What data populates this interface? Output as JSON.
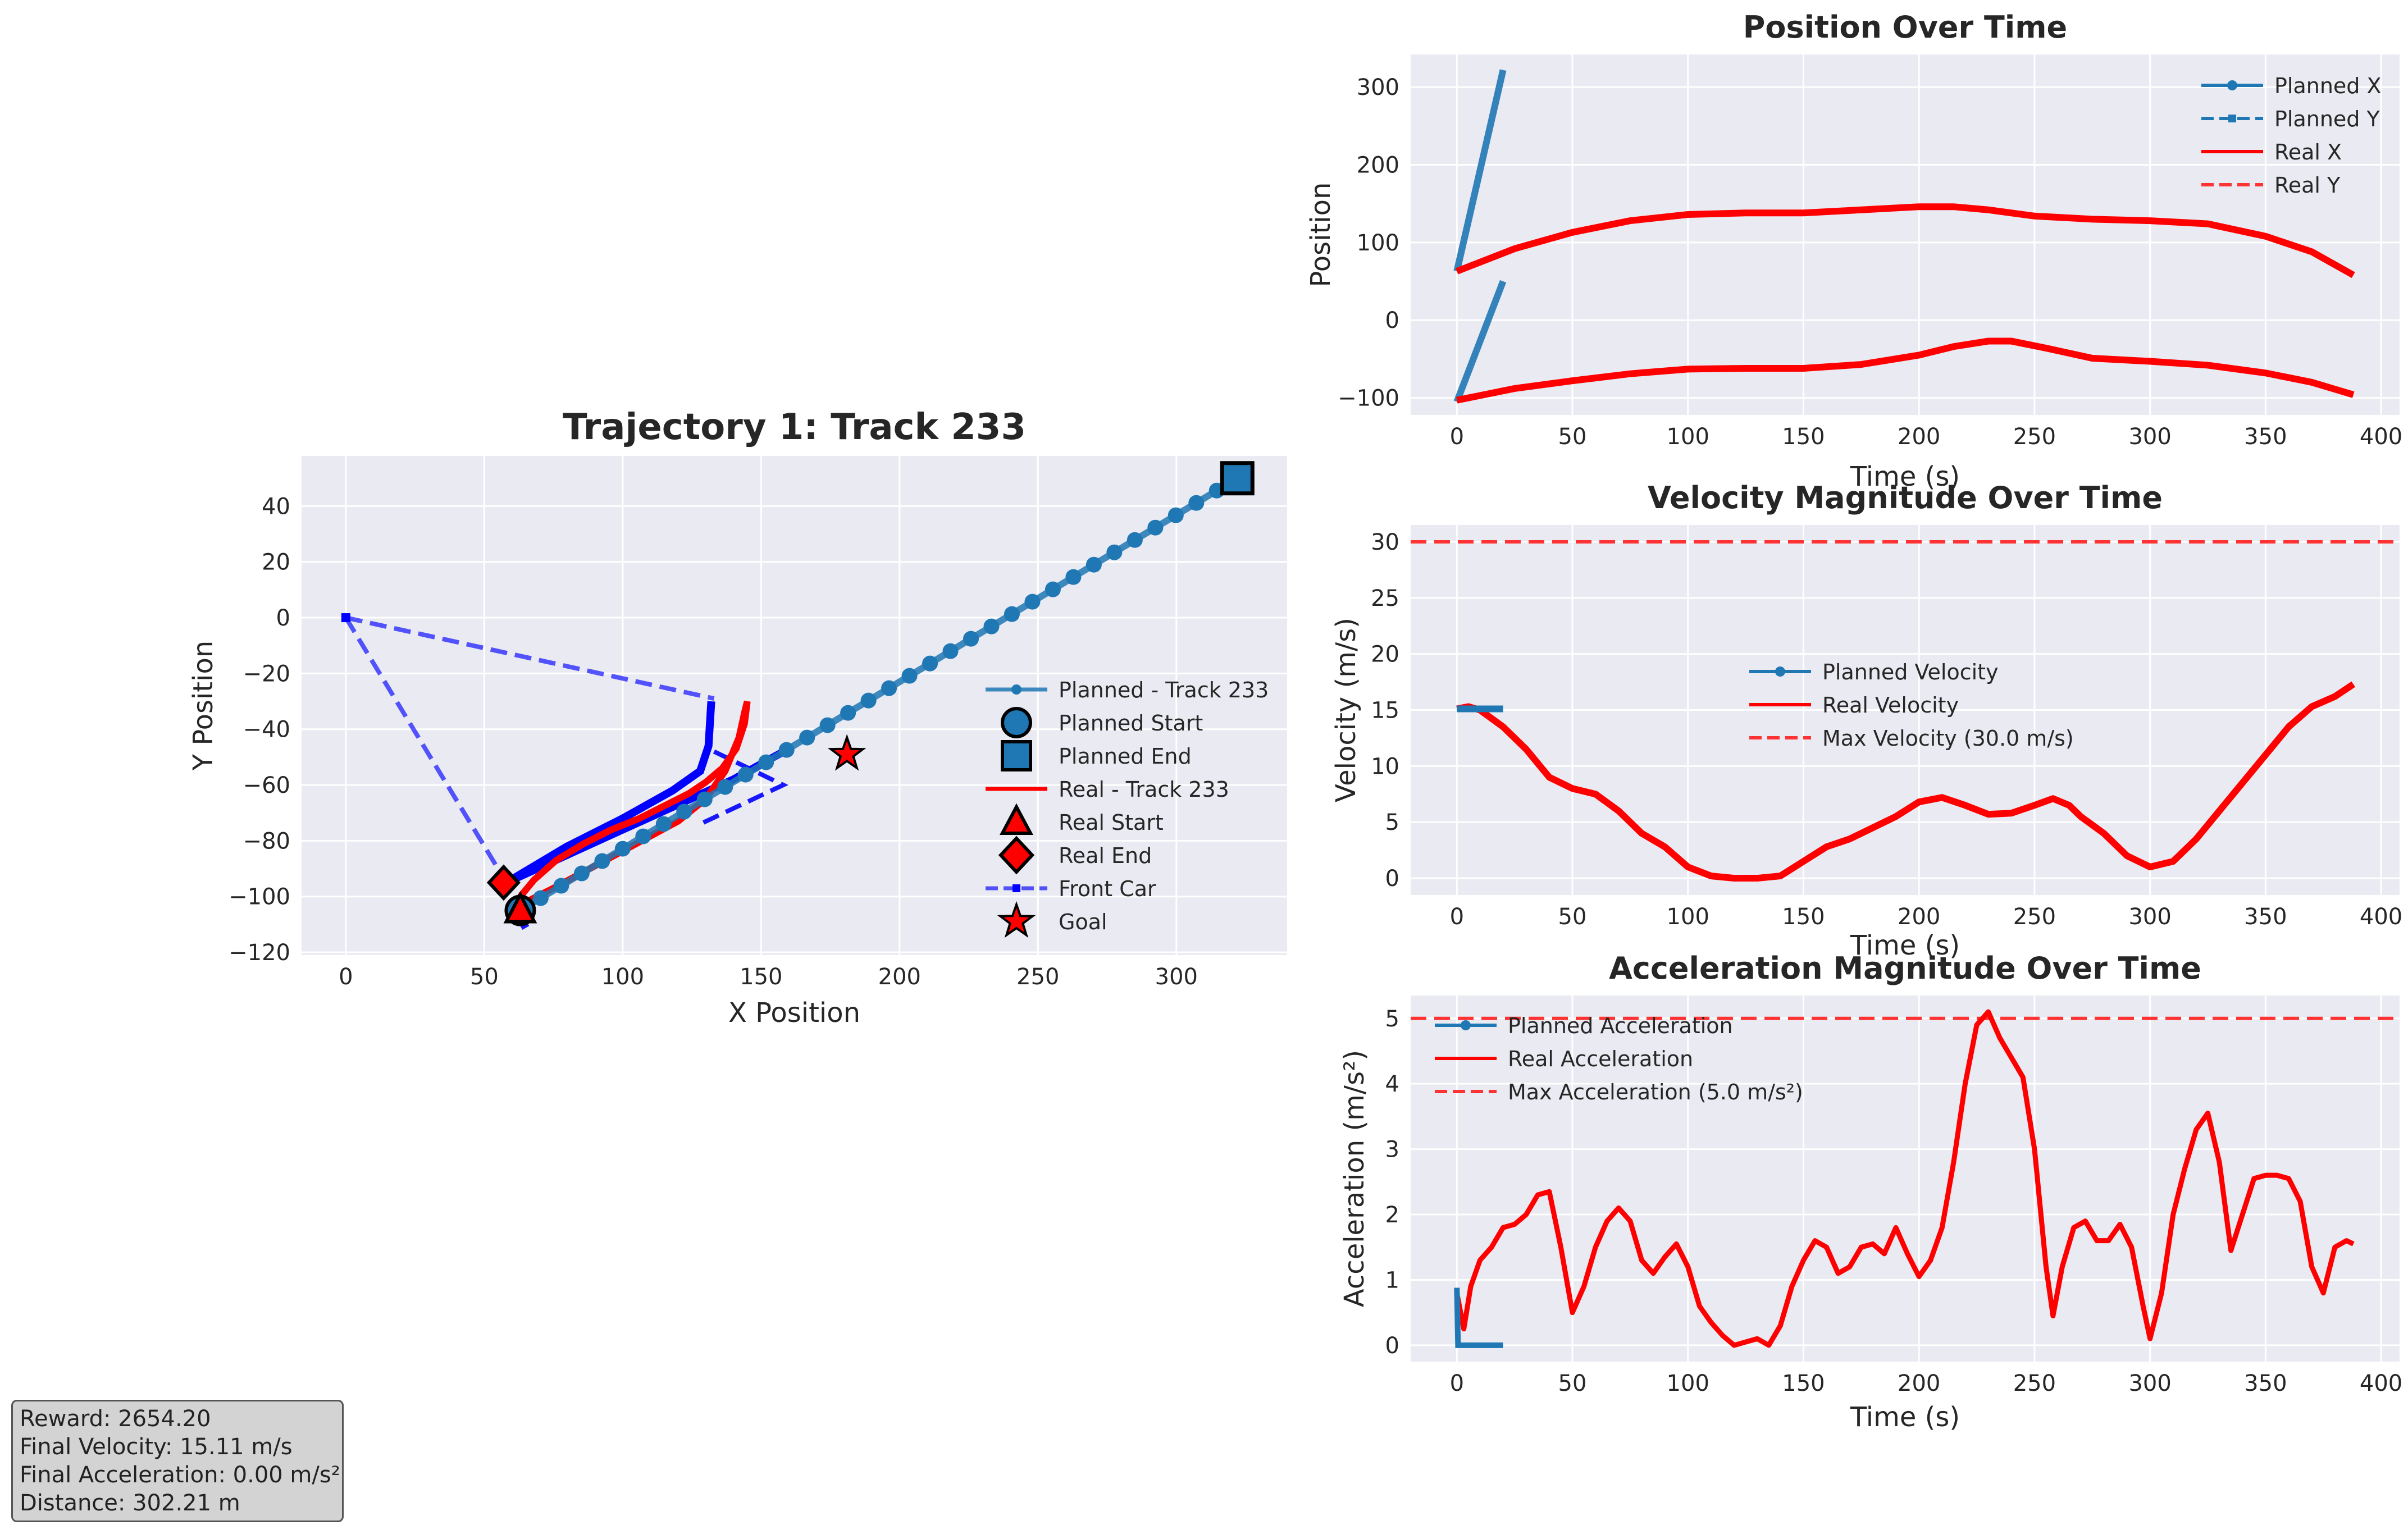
{
  "chart_data": [
    {
      "id": "traj",
      "type": "line",
      "title": "Trajectory 1: Track 233",
      "xlabel": "X Position",
      "ylabel": "Y Position",
      "xlim": [
        -16,
        340
      ],
      "ylim": [
        -121,
        58
      ],
      "xticks": [
        0,
        50,
        100,
        150,
        200,
        250,
        300
      ],
      "yticks": [
        40,
        20,
        0,
        -20,
        -40,
        -60,
        -80,
        -100,
        -120
      ],
      "grid": true,
      "legend_position": "lower right",
      "series": [
        {
          "name": "Planned - Track 233",
          "color": "#1f77b4",
          "x": [
            63,
            322
          ],
          "y": [
            -105,
            50
          ]
        },
        {
          "name": "Real - Track 233",
          "color": "#ff0000",
          "x": [
            63,
            75,
            90,
            105,
            120,
            130,
            137,
            142,
            144,
            145,
            144,
            141,
            136,
            130,
            124,
            116,
            106,
            96,
            86,
            76,
            68,
            63
          ],
          "y": [
            -103,
            -97,
            -89,
            -81,
            -73,
            -65,
            -55,
            -43,
            -34,
            -30,
            -38,
            -47,
            -54,
            -59,
            -63,
            -67,
            -72,
            -76,
            -81,
            -87,
            -94,
            -100
          ]
        },
        {
          "name": "Front Car",
          "color": "#0000ff",
          "segments": [
            {
              "x": [
                0,
                58
              ],
              "y": [
                0,
                -95
              ]
            },
            {
              "x": [
                0,
                133
              ],
              "y": [
                0,
                -29
              ]
            },
            {
              "x": [
                133,
                158,
                128
              ],
              "y": [
                -48,
                -60,
                -74
              ]
            },
            {
              "x": [
                62,
                66
              ],
              "y": [
                -106,
                -113
              ]
            }
          ]
        }
      ],
      "markers": {
        "planned_start": {
          "name": "Planned Start",
          "x": 63,
          "y": -105
        },
        "planned_end": {
          "name": "Planned End",
          "x": 322,
          "y": 50
        },
        "real_start": {
          "name": "Real Start",
          "x": 63,
          "y": -105
        },
        "real_end": {
          "name": "Real End",
          "x": 57,
          "y": -95
        },
        "goal": {
          "name": "Goal",
          "x": 181,
          "y": -49
        }
      },
      "legend": [
        "Planned - Track 233",
        "Planned Start",
        "Planned End",
        "Real - Track 233",
        "Real Start",
        "Real End",
        "Front Car",
        "Goal"
      ]
    },
    {
      "id": "pos",
      "type": "line",
      "title": "Position Over Time",
      "xlabel": "Time (s)",
      "ylabel": "Position",
      "xlim": [
        -20,
        408
      ],
      "ylim": [
        -122,
        342
      ],
      "xticks": [
        0,
        50,
        100,
        150,
        200,
        250,
        300,
        350,
        400
      ],
      "yticks": [
        300,
        200,
        100,
        0,
        -100
      ],
      "grid": true,
      "legend_position": "upper right",
      "series": [
        {
          "name": "Planned X",
          "color": "#1f77b4",
          "x": [
            0,
            20
          ],
          "y": [
            63,
            322
          ]
        },
        {
          "name": "Planned Y",
          "color": "#1f77b4",
          "dashed": true,
          "x": [
            0,
            20
          ],
          "y": [
            -105,
            50
          ]
        },
        {
          "name": "Real X",
          "color": "#ff0000",
          "x": [
            0,
            25,
            50,
            75,
            100,
            125,
            150,
            175,
            200,
            215,
            230,
            250,
            275,
            300,
            325,
            350,
            370,
            388
          ],
          "y": [
            63,
            92,
            113,
            128,
            136,
            138,
            138,
            142,
            146,
            146,
            142,
            134,
            130,
            128,
            124,
            108,
            88,
            58
          ]
        },
        {
          "name": "Real Y",
          "color": "#ff0000",
          "dashed": true,
          "x": [
            0,
            25,
            50,
            75,
            100,
            125,
            150,
            175,
            200,
            215,
            230,
            240,
            255,
            275,
            300,
            325,
            350,
            370,
            388
          ],
          "y": [
            -103,
            -88,
            -78,
            -69,
            -63,
            -62,
            -62,
            -57,
            -45,
            -34,
            -27,
            -27,
            -36,
            -49,
            -53,
            -58,
            -68,
            -80,
            -96
          ]
        }
      ],
      "legend": [
        "Planned X",
        "Planned Y",
        "Real X",
        "Real Y"
      ]
    },
    {
      "id": "vel",
      "type": "line",
      "title": "Velocity Magnitude Over Time",
      "xlabel": "Time (s)",
      "ylabel": "Velocity (m/s)",
      "xlim": [
        -20,
        408
      ],
      "ylim": [
        -1.5,
        31.5
      ],
      "xticks": [
        0,
        50,
        100,
        150,
        200,
        250,
        300,
        350,
        400
      ],
      "yticks": [
        30,
        25,
        20,
        15,
        10,
        5,
        0
      ],
      "grid": true,
      "legend_position": "center",
      "series": [
        {
          "name": "Planned Velocity",
          "color": "#1f77b4",
          "x": [
            0,
            20
          ],
          "y": [
            15.1,
            15.1
          ]
        },
        {
          "name": "Real Velocity",
          "color": "#ff0000",
          "x": [
            0,
            5,
            10,
            20,
            30,
            40,
            50,
            60,
            70,
            80,
            90,
            100,
            110,
            120,
            130,
            140,
            150,
            160,
            170,
            180,
            190,
            200,
            210,
            220,
            230,
            240,
            250,
            258,
            265,
            270,
            280,
            290,
            300,
            310,
            320,
            330,
            340,
            350,
            360,
            370,
            380,
            388
          ],
          "y": [
            15.1,
            15.3,
            15.0,
            13.5,
            11.5,
            9.0,
            8.0,
            7.5,
            6.0,
            4.0,
            2.8,
            1.0,
            0.2,
            0.0,
            0.0,
            0.2,
            1.5,
            2.8,
            3.5,
            4.5,
            5.5,
            6.8,
            7.2,
            6.5,
            5.7,
            5.8,
            6.5,
            7.1,
            6.5,
            5.5,
            4.0,
            2.0,
            1.0,
            1.5,
            3.5,
            6.0,
            8.5,
            11.0,
            13.5,
            15.3,
            16.2,
            17.3
          ]
        },
        {
          "name": "Max Velocity (30.0 m/s)",
          "color": "#ff3333",
          "dashed": true,
          "constant": 30
        }
      ],
      "legend": [
        "Planned Velocity",
        "Real Velocity",
        "Max Velocity (30.0 m/s)"
      ]
    },
    {
      "id": "acc",
      "type": "line",
      "title": "Acceleration Magnitude Over Time",
      "xlabel": "Time (s)",
      "ylabel": "Acceleration (m/s²)",
      "xlim": [
        -20,
        408
      ],
      "ylim": [
        -0.25,
        5.35
      ],
      "xticks": [
        0,
        50,
        100,
        150,
        200,
        250,
        300,
        350,
        400
      ],
      "yticks": [
        5,
        4,
        3,
        2,
        1,
        0
      ],
      "grid": true,
      "legend_position": "upper left",
      "series": [
        {
          "name": "Planned Acceleration",
          "color": "#1f77b4",
          "x": [
            0,
            0.5,
            2,
            20
          ],
          "y": [
            0.88,
            0.0,
            0.0,
            0.0
          ]
        },
        {
          "name": "Real Acceleration",
          "color": "#ff0000",
          "x": [
            0,
            3,
            6,
            10,
            15,
            20,
            25,
            30,
            35,
            40,
            45,
            50,
            55,
            60,
            65,
            70,
            75,
            80,
            85,
            90,
            95,
            100,
            105,
            110,
            115,
            120,
            125,
            130,
            135,
            140,
            145,
            150,
            155,
            160,
            165,
            170,
            175,
            180,
            185,
            190,
            195,
            200,
            205,
            210,
            215,
            220,
            225,
            230,
            235,
            240,
            245,
            250,
            255,
            258,
            262,
            267,
            272,
            277,
            282,
            287,
            292,
            297,
            300,
            305,
            310,
            315,
            320,
            325,
            330,
            335,
            340,
            345,
            350,
            355,
            360,
            365,
            370,
            375,
            380,
            385,
            388
          ],
          "y": [
            0.8,
            0.25,
            0.9,
            1.3,
            1.5,
            1.8,
            1.85,
            2.0,
            2.3,
            2.35,
            1.5,
            0.5,
            0.9,
            1.5,
            1.9,
            2.1,
            1.9,
            1.3,
            1.1,
            1.35,
            1.55,
            1.2,
            0.6,
            0.35,
            0.15,
            0.0,
            0.05,
            0.1,
            0.0,
            0.3,
            0.9,
            1.3,
            1.6,
            1.5,
            1.1,
            1.2,
            1.5,
            1.55,
            1.4,
            1.8,
            1.4,
            1.05,
            1.3,
            1.8,
            2.8,
            4.0,
            4.9,
            5.1,
            4.7,
            4.4,
            4.1,
            3.0,
            1.2,
            0.45,
            1.2,
            1.8,
            1.9,
            1.6,
            1.6,
            1.85,
            1.5,
            0.6,
            0.1,
            0.8,
            2.0,
            2.7,
            3.3,
            3.55,
            2.8,
            1.45,
            2.0,
            2.55,
            2.6,
            2.6,
            2.55,
            2.2,
            1.2,
            0.8,
            1.5,
            1.6,
            1.55
          ]
        },
        {
          "name": "Max Acceleration (5.0 m/s²)",
          "color": "#ff3333",
          "dashed": true,
          "constant": 5
        }
      ],
      "legend": [
        "Planned Acceleration",
        "Real Acceleration",
        "Max Acceleration (5.0 m/s²)"
      ]
    }
  ],
  "info": {
    "reward": "Reward: 2654.20",
    "final_velocity": "Final Velocity: 15.11 m/s",
    "final_acceleration": "Final Acceleration: 0.00 m/s²",
    "distance": "Distance: 302.21 m"
  }
}
